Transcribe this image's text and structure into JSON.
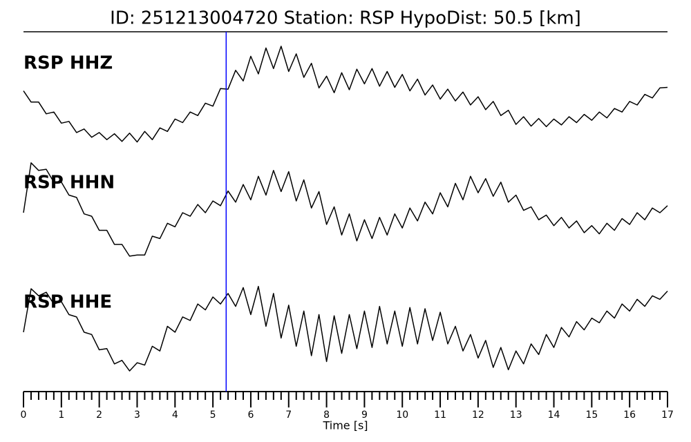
{
  "chart_data": {
    "type": "line",
    "title": "ID: 251213004720   Station: RSP   HypoDist:    50.5 [km]",
    "xlabel": "Time [s]",
    "label_color": "#4d9a00",
    "xlim": [
      0,
      17
    ],
    "xticks": [
      0,
      1,
      2,
      3,
      4,
      5,
      6,
      7,
      8,
      9,
      10,
      11,
      12,
      13,
      14,
      15,
      16,
      17
    ],
    "xminorticks": [
      0.2,
      0.4,
      0.6,
      0.8,
      1.2,
      1.4,
      1.6,
      1.8,
      2.2,
      2.4,
      2.6,
      2.8,
      3.2,
      3.4,
      3.6,
      3.8,
      4.2,
      4.4,
      4.6,
      4.8,
      5.2,
      5.4,
      5.6,
      5.8,
      6.2,
      6.4,
      6.6,
      6.8,
      7.2,
      7.4,
      7.6,
      7.8,
      8.2,
      8.4,
      8.6,
      8.8,
      9.2,
      9.4,
      9.6,
      9.8,
      10.2,
      10.4,
      10.6,
      10.8,
      11.2,
      11.4,
      11.6,
      11.8,
      12.2,
      12.4,
      12.6,
      12.8,
      13.2,
      13.4,
      13.6,
      13.8,
      14.2,
      14.4,
      14.6,
      14.8,
      15.2,
      15.4,
      15.6,
      15.8,
      16.2,
      16.4,
      16.6,
      16.8
    ],
    "ylim": [
      -100,
      100
    ],
    "pick": {
      "x": 5.35,
      "color": "#0000ff"
    },
    "x": [
      0,
      0.2,
      0.4,
      0.6,
      0.8,
      1,
      1.2,
      1.4,
      1.6,
      1.8,
      2,
      2.2,
      2.4,
      2.6,
      2.8,
      3,
      3.2,
      3.4,
      3.6,
      3.8,
      4,
      4.2,
      4.4,
      4.6,
      4.8,
      5,
      5.2,
      5.4,
      5.6,
      5.8,
      6,
      6.2,
      6.4,
      6.6,
      6.8,
      7,
      7.2,
      7.4,
      7.6,
      7.8,
      8,
      8.2,
      8.4,
      8.6,
      8.8,
      9,
      9.2,
      9.4,
      9.6,
      9.8,
      10,
      10.2,
      10.4,
      10.6,
      10.8,
      11,
      11.2,
      11.4,
      11.6,
      11.8,
      12,
      12.2,
      12.4,
      12.6,
      12.8,
      13,
      13.2,
      13.4,
      13.6,
      13.8,
      14,
      14.2,
      14.4,
      14.6,
      14.8,
      15,
      15.2,
      15.4,
      15.6,
      15.8,
      16,
      16.2,
      16.4,
      16.6,
      16.8,
      17
    ],
    "series": [
      {
        "name": "RSP HHZ",
        "color": "#000000",
        "values": [
          4,
          -15,
          -15,
          -35,
          -32,
          -51,
          -48,
          -67,
          -61,
          -75,
          -67,
          -79,
          -69,
          -82,
          -68,
          -83,
          -65,
          -79,
          -59,
          -65,
          -44,
          -50,
          -32,
          -38,
          -17,
          -22,
          8,
          7,
          39,
          21,
          63,
          33,
          77,
          42,
          80,
          37,
          67,
          27,
          51,
          9,
          29,
          1,
          35,
          6,
          41,
          16,
          42,
          12,
          37,
          10,
          32,
          4,
          24,
          -3,
          14,
          -10,
          7,
          -13,
          2,
          -20,
          -6,
          -28,
          -14,
          -38,
          -29,
          -53,
          -40,
          -56,
          -43,
          -57,
          -44,
          -54,
          -40,
          -50,
          -36,
          -46,
          -32,
          -42,
          -26,
          -32,
          -14,
          -20,
          -2,
          -8,
          9,
          10
        ]
      },
      {
        "name": "RSP HHN",
        "color": "#000000",
        "values": [
          0,
          85,
          72,
          74,
          52,
          52,
          30,
          26,
          -2,
          -6,
          -30,
          -30,
          -54,
          -54,
          -74,
          -72,
          -72,
          -40,
          -44,
          -18,
          -24,
          0,
          -6,
          14,
          0,
          20,
          12,
          37,
          18,
          48,
          22,
          62,
          30,
          72,
          36,
          70,
          20,
          56,
          8,
          36,
          -20,
          10,
          -38,
          -2,
          -48,
          -12,
          -44,
          -8,
          -38,
          -2,
          -26,
          8,
          -14,
          18,
          -2,
          34,
          10,
          50,
          22,
          62,
          34,
          58,
          28,
          52,
          18,
          30,
          4,
          10,
          -12,
          -4,
          -22,
          -8,
          -26,
          -14,
          -34,
          -22,
          -36,
          -18,
          -30,
          -10,
          -20,
          0,
          -12,
          8,
          0,
          12
        ]
      },
      {
        "name": "RSP HHE",
        "color": "#000000",
        "values": [
          0,
          74,
          62,
          68,
          48,
          52,
          30,
          26,
          0,
          -4,
          -30,
          -28,
          -54,
          -48,
          -66,
          -52,
          -56,
          -24,
          -32,
          10,
          0,
          26,
          20,
          48,
          38,
          60,
          48,
          66,
          44,
          76,
          30,
          78,
          10,
          66,
          -10,
          46,
          -24,
          36,
          -40,
          30,
          -50,
          28,
          -36,
          30,
          -28,
          36,
          -26,
          44,
          -20,
          36,
          -24,
          42,
          -20,
          40,
          -14,
          34,
          -20,
          10,
          -32,
          -4,
          -44,
          -14,
          -60,
          -26,
          -64,
          -32,
          -54,
          -20,
          -38,
          -4,
          -26,
          8,
          -8,
          18,
          4,
          24,
          16,
          36,
          24,
          48,
          36,
          56,
          44,
          62,
          56,
          70
        ]
      }
    ]
  }
}
